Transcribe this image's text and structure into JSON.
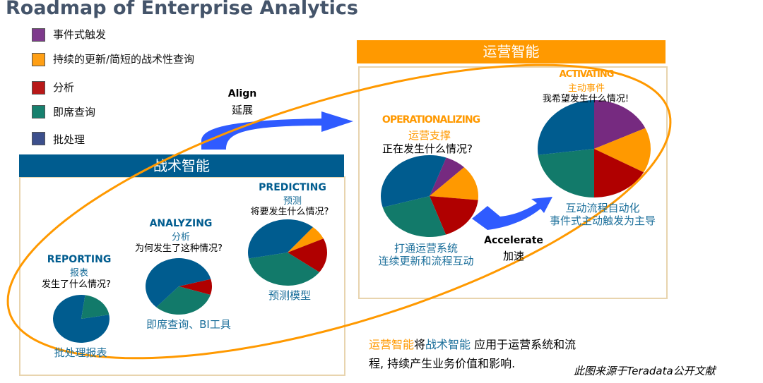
{
  "title": "Roadmap of Enterprise Analytics",
  "colors": {
    "batch": "#005c8f",
    "adhoc": "#127a6a",
    "analysis": "#b00000",
    "update": "#ff9900",
    "event": "#762a80",
    "tactical": "#005c8f",
    "operational": "#ff9900",
    "arrow": "#2f5bff"
  },
  "legend": [
    {
      "label": "事件式触发",
      "color": "#7e3a8c"
    },
    {
      "label": "持续的更新/简短的战术性查询",
      "color": "#ff9f14"
    },
    {
      "label": "分析",
      "color": "#b81818"
    },
    {
      "label": "即席查询",
      "color": "#17806e"
    },
    {
      "label": "批处理",
      "color": "#3c4f8c"
    }
  ],
  "tactical": {
    "header": "战术智能"
  },
  "operational": {
    "header": "运营智能"
  },
  "arrows": {
    "align_en": "Align",
    "align_cn": "延展",
    "accel_en": "Accelerate",
    "accel_cn": "加速"
  },
  "stages": [
    {
      "en": "REPORTING",
      "cn": "报表",
      "question": "发生了什么情况?",
      "caption": [
        "批处理报表"
      ],
      "slices": [
        {
          "k": "batch",
          "v": 80
        },
        {
          "k": "adhoc",
          "v": 20
        }
      ]
    },
    {
      "en": "ANALYZING",
      "cn": "分析",
      "question": "为何发生了这种情况?",
      "caption": [
        "即席查询、BI工具"
      ],
      "slices": [
        {
          "k": "analysis",
          "v": 9
        },
        {
          "k": "adhoc",
          "v": 32
        },
        {
          "k": "batch",
          "v": 59
        }
      ]
    },
    {
      "en": "PREDICTING",
      "cn": "预测",
      "question": "将要发生什么情况?",
      "caption": [
        "预测模型"
      ],
      "slices": [
        {
          "k": "update",
          "v": 7
        },
        {
          "k": "analysis",
          "v": 17
        },
        {
          "k": "adhoc",
          "v": 37
        },
        {
          "k": "batch",
          "v": 39
        }
      ]
    },
    {
      "en": "OPERATIONALIZING",
      "cn": "运营支撑",
      "question": "正在发生什么情况?",
      "caption": [
        "打通运营系统",
        "连续更新和流程互动"
      ],
      "slices": [
        {
          "k": "event",
          "v": 7
        },
        {
          "k": "update",
          "v": 14
        },
        {
          "k": "analysis",
          "v": 18
        },
        {
          "k": "adhoc",
          "v": 26
        },
        {
          "k": "batch",
          "v": 35
        }
      ]
    },
    {
      "en": "ACTIVATING",
      "cn": "主动事件",
      "question": "我希望发生什么情况!",
      "caption": [
        "互动流程自动化",
        "事件式主动触发为主导"
      ],
      "slices": [
        {
          "k": "event",
          "v": 18
        },
        {
          "k": "update",
          "v": 15
        },
        {
          "k": "analysis",
          "v": 17
        },
        {
          "k": "adhoc",
          "v": 23
        },
        {
          "k": "batch",
          "v": 27
        }
      ]
    }
  ],
  "summary": {
    "part1": "运营智能",
    "part2": "将",
    "part3": "战术智能",
    "part4": " 应用于运营系统和流",
    "line2": "程, 持续产生业务价值和影响."
  },
  "source": "此图来源于Teradata公开文献"
}
